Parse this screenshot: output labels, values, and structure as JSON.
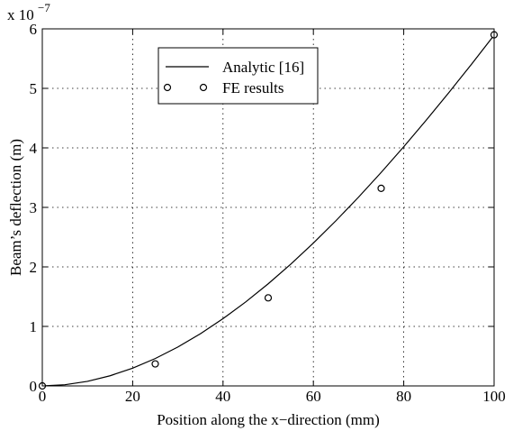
{
  "chart_data": {
    "type": "line",
    "xlabel": "Position along the x−direction (mm)",
    "ylabel": "Beam’s deflection (m)",
    "y_multiplier": {
      "base": "x 10",
      "exponent": "−7"
    },
    "xlim": [
      0,
      100
    ],
    "ylim": [
      0,
      6
    ],
    "x_ticks": [
      0,
      20,
      40,
      60,
      80,
      100
    ],
    "y_ticks": [
      0,
      1,
      2,
      3,
      4,
      5,
      6
    ],
    "x_tick_labels": [
      "0",
      "20",
      "40",
      "60",
      "80",
      "100"
    ],
    "y_tick_labels": [
      "0",
      "1",
      "2",
      "3",
      "4",
      "5",
      "6"
    ],
    "grid": true,
    "legend_position": "top-center",
    "series": [
      {
        "name": "Analytic [16]",
        "style": "line",
        "color": "#000000",
        "x": [
          0,
          5,
          10,
          15,
          20,
          25,
          30,
          35,
          40,
          45,
          50,
          55,
          60,
          65,
          70,
          75,
          80,
          85,
          90,
          95,
          100
        ],
        "y": [
          0,
          0.0103,
          0.0406,
          0.0898,
          0.1573,
          0.2423,
          0.344,
          0.4618,
          0.5947,
          0.7421,
          0.9033,
          1.0773,
          1.2636,
          1.4613,
          1.6697,
          1.888,
          2.1155,
          2.3514,
          2.5949,
          2.8454,
          3.102
        ],
        "scale": 1.9
      },
      {
        "name": "FE results",
        "style": "marker",
        "color": "#000000",
        "x": [
          0,
          25,
          50,
          75,
          100
        ],
        "y": [
          0,
          0.37,
          1.48,
          3.32,
          5.9
        ]
      }
    ]
  }
}
